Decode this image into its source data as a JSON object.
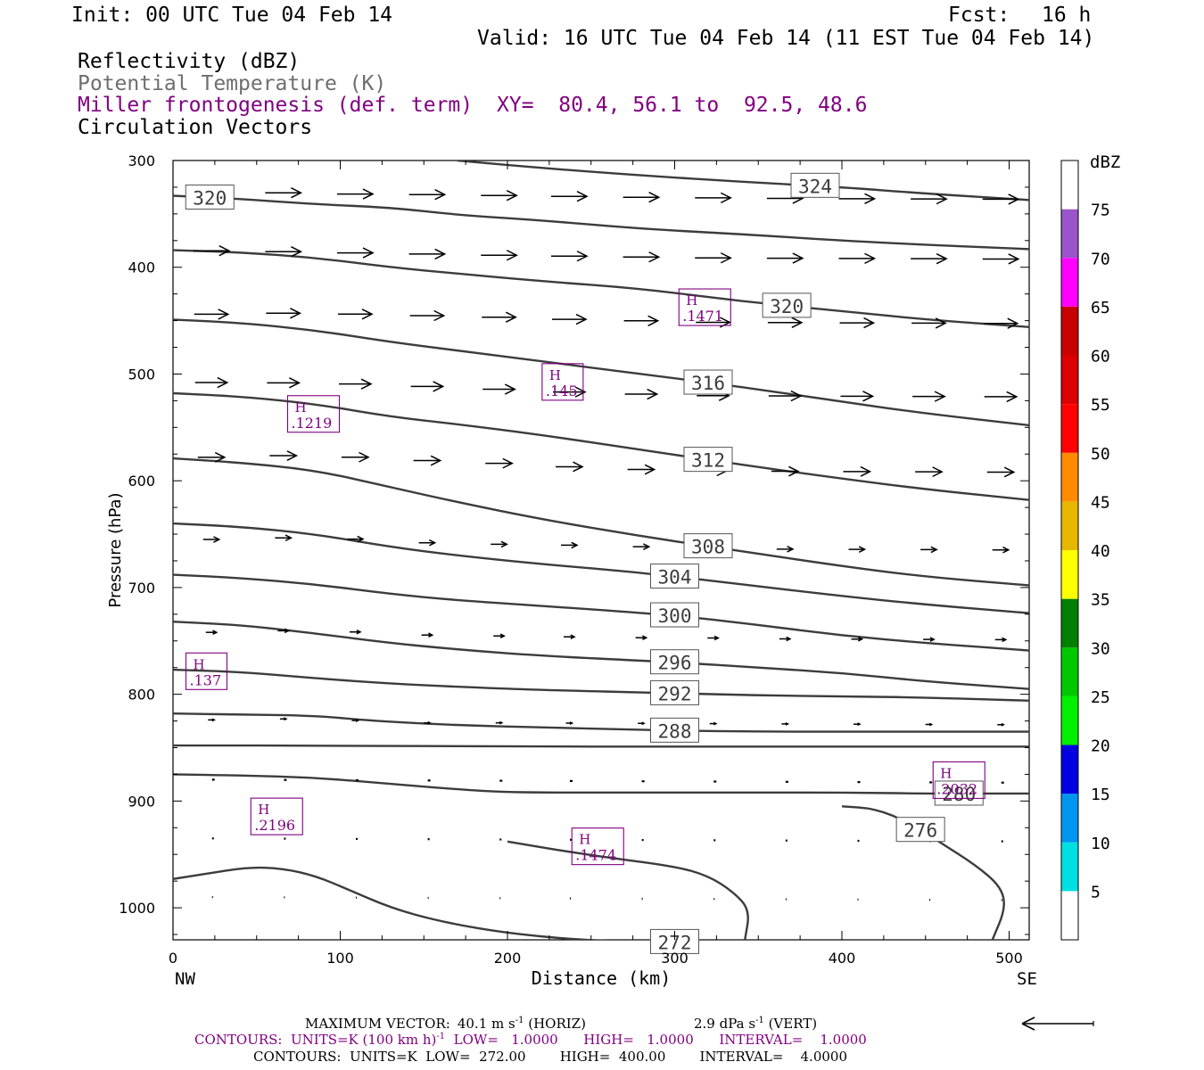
{
  "header": {
    "init": "Init: 00 UTC Tue 04 Feb 14",
    "fcst_label": "Fcst:",
    "fcst_value": "16 h",
    "valid": "Valid: 16 UTC Tue 04 Feb 14 (11 EST Tue 04 Feb 14)",
    "fields": [
      "Reflectivity (dBZ)",
      "Potential Temperature (K)",
      "Miller frontogenesis (def. term)",
      "Circulation Vectors"
    ],
    "xy": "XY=  80.4, 56.1 to  92.5, 48.6"
  },
  "colors": {
    "purple": "#800080",
    "contour": "#3c3c3c",
    "axis": "#000000"
  },
  "chart_data": {
    "type": "contour",
    "xlabel": "Distance (km)",
    "ylabel": "Pressure (hPa)",
    "xlim": [
      0,
      512
    ],
    "ylim": [
      300,
      1030
    ],
    "x_ticks": [
      0,
      100,
      200,
      300,
      400,
      500
    ],
    "y_ticks": [
      300,
      400,
      500,
      600,
      700,
      800,
      900,
      1000
    ],
    "x_end_labels": {
      "left": "NW",
      "right": "SE"
    },
    "theta_contours": [
      {
        "value": 272,
        "label": "272",
        "label_x": 300,
        "points": [
          [
            0,
            973
          ],
          [
            20,
            968
          ],
          [
            45,
            962
          ],
          [
            65,
            963
          ],
          [
            85,
            970
          ],
          [
            105,
            983
          ],
          [
            130,
            1000
          ],
          [
            160,
            1013
          ],
          [
            200,
            1024
          ],
          [
            250,
            1031
          ],
          [
            300,
            1032
          ],
          [
            340,
            1032
          ],
          [
            400,
            1032
          ],
          [
            460,
            1032
          ],
          [
            512,
            1032
          ]
        ]
      },
      {
        "value": 272,
        "label": "",
        "label_x": null,
        "points": [
          [
            200,
            938
          ],
          [
            250,
            951
          ],
          [
            300,
            961
          ],
          [
            320,
            970
          ],
          [
            335,
            985
          ],
          [
            345,
            1002
          ],
          [
            342,
            1030
          ]
        ]
      },
      {
        "value": 276,
        "label": "276",
        "label_x": 447,
        "points": [
          [
            400,
            905
          ],
          [
            420,
            907
          ],
          [
            440,
            920
          ],
          [
            460,
            940
          ],
          [
            480,
            960
          ],
          [
            495,
            980
          ],
          [
            498,
            1000
          ],
          [
            490,
            1030
          ]
        ]
      },
      {
        "value": 280,
        "label": "280",
        "label_x": 470,
        "points": [
          [
            0,
            875
          ],
          [
            40,
            876
          ],
          [
            85,
            878
          ],
          [
            130,
            884
          ],
          [
            170,
            889
          ],
          [
            200,
            892
          ],
          [
            260,
            892
          ],
          [
            300,
            892
          ],
          [
            350,
            892
          ],
          [
            400,
            892
          ],
          [
            450,
            893
          ],
          [
            480,
            893
          ],
          [
            512,
            893
          ]
        ]
      },
      {
        "value": 284,
        "label": "",
        "label_x": null,
        "points": [
          [
            0,
            848
          ],
          [
            100,
            848
          ],
          [
            200,
            849
          ],
          [
            300,
            849
          ],
          [
            400,
            849
          ],
          [
            512,
            849
          ]
        ]
      },
      {
        "value": 288,
        "label": "288",
        "label_x": 300,
        "points": [
          [
            0,
            818
          ],
          [
            40,
            819
          ],
          [
            85,
            820
          ],
          [
            120,
            825
          ],
          [
            170,
            829
          ],
          [
            220,
            831
          ],
          [
            300,
            834
          ],
          [
            350,
            835
          ],
          [
            400,
            835
          ],
          [
            450,
            835
          ],
          [
            512,
            835
          ]
        ]
      },
      {
        "value": 292,
        "label": "292",
        "label_x": 300,
        "points": [
          [
            0,
            777
          ],
          [
            40,
            779
          ],
          [
            85,
            785
          ],
          [
            130,
            790
          ],
          [
            170,
            793
          ],
          [
            220,
            796
          ],
          [
            300,
            799
          ],
          [
            350,
            801
          ],
          [
            400,
            802
          ],
          [
            450,
            803
          ],
          [
            512,
            806
          ]
        ]
      },
      {
        "value": 296,
        "label": "296",
        "label_x": 300,
        "points": [
          [
            0,
            732
          ],
          [
            40,
            735
          ],
          [
            85,
            743
          ],
          [
            130,
            752
          ],
          [
            170,
            758
          ],
          [
            220,
            764
          ],
          [
            300,
            770
          ],
          [
            350,
            775
          ],
          [
            400,
            780
          ],
          [
            450,
            788
          ],
          [
            512,
            795
          ]
        ]
      },
      {
        "value": 300,
        "label": "300",
        "label_x": 300,
        "points": [
          [
            0,
            688
          ],
          [
            40,
            691
          ],
          [
            85,
            697
          ],
          [
            130,
            706
          ],
          [
            170,
            712
          ],
          [
            220,
            717
          ],
          [
            300,
            726
          ],
          [
            350,
            735
          ],
          [
            400,
            745
          ],
          [
            450,
            752
          ],
          [
            512,
            759
          ]
        ]
      },
      {
        "value": 304,
        "label": "304",
        "label_x": 300,
        "points": [
          [
            0,
            640
          ],
          [
            40,
            643
          ],
          [
            85,
            650
          ],
          [
            130,
            662
          ],
          [
            170,
            670
          ],
          [
            220,
            678
          ],
          [
            280,
            686
          ],
          [
            340,
            697
          ],
          [
            400,
            708
          ],
          [
            450,
            716
          ],
          [
            512,
            724
          ]
        ]
      },
      {
        "value": 308,
        "label": "308",
        "label_x": 320,
        "points": [
          [
            0,
            579
          ],
          [
            40,
            583
          ],
          [
            85,
            590
          ],
          [
            130,
            606
          ],
          [
            170,
            620
          ],
          [
            220,
            636
          ],
          [
            280,
            652
          ],
          [
            340,
            666
          ],
          [
            400,
            680
          ],
          [
            450,
            690
          ],
          [
            512,
            698
          ]
        ]
      },
      {
        "value": 312,
        "label": "312",
        "label_x": 320,
        "points": [
          [
            0,
            518
          ],
          [
            40,
            521
          ],
          [
            85,
            528
          ],
          [
            130,
            540
          ],
          [
            170,
            547
          ],
          [
            220,
            557
          ],
          [
            280,
            571
          ],
          [
            340,
            585
          ],
          [
            400,
            598
          ],
          [
            450,
            608
          ],
          [
            512,
            618
          ]
        ]
      },
      {
        "value": 316,
        "label": "316",
        "label_x": 320,
        "points": [
          [
            0,
            449
          ],
          [
            40,
            452
          ],
          [
            85,
            459
          ],
          [
            130,
            470
          ],
          [
            170,
            478
          ],
          [
            220,
            488
          ],
          [
            280,
            500
          ],
          [
            340,
            512
          ],
          [
            400,
            526
          ],
          [
            450,
            537
          ],
          [
            512,
            548
          ]
        ]
      },
      {
        "value": 320,
        "label": "320",
        "label_x": 367,
        "points": [
          [
            0,
            384
          ],
          [
            40,
            386
          ],
          [
            85,
            391
          ],
          [
            130,
            400
          ],
          [
            170,
            406
          ],
          [
            220,
            413
          ],
          [
            280,
            420
          ],
          [
            340,
            432
          ],
          [
            400,
            441
          ],
          [
            450,
            449
          ],
          [
            512,
            456
          ]
        ]
      },
      {
        "value": 320,
        "label": "320",
        "label_x": 22,
        "points": [
          [
            0,
            333
          ],
          [
            40,
            336
          ],
          [
            85,
            341
          ],
          [
            130,
            344
          ],
          [
            170,
            351
          ],
          [
            220,
            356
          ],
          [
            280,
            364
          ],
          [
            340,
            369
          ],
          [
            400,
            375
          ],
          [
            450,
            379
          ],
          [
            512,
            383
          ]
        ]
      },
      {
        "value": 324,
        "label": "324",
        "label_x": 384,
        "points": [
          [
            170,
            300
          ],
          [
            220,
            307
          ],
          [
            280,
            314
          ],
          [
            340,
            320
          ],
          [
            400,
            325
          ],
          [
            450,
            331
          ],
          [
            512,
            337
          ]
        ]
      }
    ],
    "frontogenesis_maxima": [
      {
        "letter": "H",
        "value": ".137",
        "x": 20,
        "p": 778
      },
      {
        "letter": "H",
        "value": ".1219",
        "x": 84,
        "p": 537
      },
      {
        "letter": "H",
        "value": ".2196",
        "x": 62,
        "p": 914
      },
      {
        "letter": "H",
        "value": ".145",
        "x": 233,
        "p": 507
      },
      {
        "letter": "H",
        "value": ".1471",
        "x": 318,
        "p": 437
      },
      {
        "letter": "H",
        "value": ".1474",
        "x": 254,
        "p": 942
      },
      {
        "letter": "H",
        "value": ".2032",
        "x": 470,
        "p": 880
      }
    ],
    "vector_rows": [
      {
        "p": 330,
        "len": 40,
        "offset": [
          0,
          0,
          3,
          4,
          6,
          8,
          10,
          11,
          12,
          12,
          12,
          12
        ]
      },
      {
        "p": 386,
        "len": 40,
        "offset": [
          -5,
          -3,
          0,
          3,
          6,
          8,
          10,
          12,
          12,
          12,
          12,
          12
        ]
      },
      {
        "p": 444,
        "len": 38,
        "offset": [
          0,
          -4,
          -2,
          2,
          6,
          12,
          16,
          20,
          20,
          20,
          20,
          20
        ]
      },
      {
        "p": 508,
        "len": 36,
        "offset": [
          0,
          0,
          3,
          10,
          18,
          26,
          32,
          36,
          36,
          36,
          36,
          36
        ]
      },
      {
        "p": 578,
        "len": 30,
        "offset": [
          0,
          -6,
          -2,
          8,
          16,
          26,
          34,
          38,
          38,
          38,
          38,
          38
        ]
      },
      {
        "p": 655,
        "len": 18,
        "offset": [
          0,
          -6,
          -3,
          8,
          12,
          14,
          18,
          22,
          24,
          24,
          24,
          24
        ]
      },
      {
        "p": 742,
        "len": 12,
        "offset": [
          0,
          -6,
          -3,
          6,
          8,
          10,
          12,
          12,
          14,
          14,
          14,
          14
        ]
      },
      {
        "p": 824,
        "len": 7,
        "offset": [
          0,
          -4,
          0,
          7,
          6,
          6,
          6,
          6,
          6,
          6,
          6,
          6
        ]
      },
      {
        "p": 880,
        "len": 3,
        "offset": [
          0,
          0,
          0,
          0,
          0,
          0,
          0,
          0,
          0,
          0,
          0,
          0
        ]
      },
      {
        "p": 935,
        "len": 2,
        "offset": [
          0,
          0,
          0,
          0,
          0,
          0,
          0,
          0,
          0,
          0,
          0,
          0
        ]
      },
      {
        "p": 990,
        "len": 1,
        "offset": [
          0,
          0,
          0,
          0,
          0,
          0,
          0,
          0,
          0,
          0,
          0,
          0
        ]
      }
    ],
    "vector_columns_km": [
      2,
      45,
      88,
      131,
      174,
      216,
      259,
      302,
      345,
      388,
      431,
      474
    ]
  },
  "colorbar": {
    "title": "dBZ",
    "levels": [
      {
        "label": "",
        "color": "#ffffff"
      },
      {
        "label": "5",
        "color": "#00e0e0"
      },
      {
        "label": "10",
        "color": "#0096f0"
      },
      {
        "label": "15",
        "color": "#0000e0"
      },
      {
        "label": "20",
        "color": "#00f000"
      },
      {
        "label": "25",
        "color": "#00c800"
      },
      {
        "label": "30",
        "color": "#008000"
      },
      {
        "label": "35",
        "color": "#ffff00"
      },
      {
        "label": "40",
        "color": "#e6b800"
      },
      {
        "label": "45",
        "color": "#ff8c00"
      },
      {
        "label": "50",
        "color": "#ff0000"
      },
      {
        "label": "55",
        "color": "#dc0000"
      },
      {
        "label": "60",
        "color": "#c80000"
      },
      {
        "label": "65",
        "color": "#ff00ff"
      },
      {
        "label": "70",
        "color": "#9955c9"
      },
      {
        "label": "75",
        "color": "#ffffff"
      }
    ]
  },
  "footer": {
    "max_vector_label": "MAXIMUM VECTOR:",
    "max_vector_horiz": "40.1 m s",
    "horiz_suffix": " (HORIZ)",
    "max_vector_vert": "2.9 dPa s",
    "vert_suffix": " (VERT)",
    "exp": "-1",
    "fronto_contours_a": "CONTOURS:  UNITS=K (100 km h)",
    "fronto_contours_b": "  LOW=   1.0000      HIGH=   1.0000      INTERVAL=    1.0000",
    "theta_contours": "CONTOURS:  UNITS=K  LOW=  272.00        HIGH=  400.00        INTERVAL=    4.0000"
  }
}
